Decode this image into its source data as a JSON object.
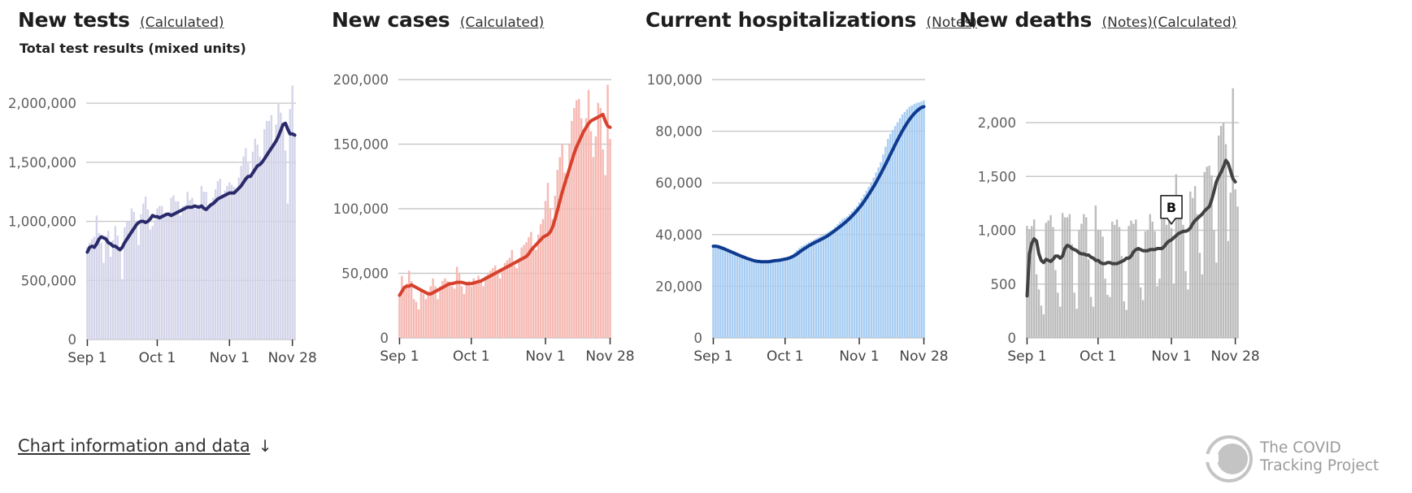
{
  "footer": {
    "link_label": "Chart information and data",
    "arrow": "↓"
  },
  "brand": {
    "line1": "The COVID",
    "line2": "Tracking Project",
    "color": "#9a9a9a"
  },
  "chart_data": [
    {
      "id": "tests",
      "type": "bar",
      "title": "New tests",
      "links": [
        "(Calculated)"
      ],
      "subtitle": "Total test results (mixed units)",
      "bar_color": "#d4d4ea",
      "line_color": "#2a2a6b",
      "ylim": [
        0,
        2200000
      ],
      "yticks": [
        0,
        500000,
        1000000,
        1500000,
        2000000
      ],
      "ytick_labels": [
        "0",
        "500,000",
        "1,000,000",
        "1,500,000",
        "2,000,000"
      ],
      "xtick_labels": [
        "Sep 1",
        "Oct 1",
        "Nov 1",
        "Nov 28"
      ],
      "xtick_index": [
        0,
        30,
        61,
        88
      ],
      "values": [
        780000,
        820000,
        850000,
        870000,
        1050000,
        900000,
        820000,
        650000,
        880000,
        920000,
        700000,
        840000,
        960000,
        880000,
        750000,
        510000,
        950000,
        1000000,
        1000000,
        1110000,
        1080000,
        1000000,
        800000,
        1060000,
        1150000,
        1210000,
        1100000,
        930000,
        960000,
        1010000,
        1110000,
        1130000,
        1130000,
        1040000,
        1060000,
        1080000,
        1200000,
        1220000,
        1170000,
        1170000,
        1050000,
        1130000,
        1140000,
        1250000,
        1180000,
        1200000,
        1110000,
        1120000,
        1140000,
        1300000,
        1250000,
        1250000,
        1120000,
        1140000,
        1200000,
        1270000,
        1340000,
        1360000,
        1230000,
        1260000,
        1300000,
        1330000,
        1310000,
        1290000,
        1250000,
        1370000,
        1470000,
        1550000,
        1620000,
        1490000,
        1400000,
        1590000,
        1700000,
        1650000,
        1550000,
        1500000,
        1780000,
        1850000,
        1850000,
        1900000,
        1650000,
        1820000,
        2000000,
        1920000,
        1780000,
        1600000,
        1150000,
        1950000,
        2150000,
        1750000
      ],
      "avg": [
        740000,
        780000,
        790000,
        780000,
        810000,
        850000,
        870000,
        860000,
        850000,
        820000,
        810000,
        790000,
        790000,
        775000,
        760000,
        780000,
        820000,
        850000,
        880000,
        910000,
        940000,
        970000,
        990000,
        1000000,
        1000000,
        990000,
        1000000,
        1020000,
        1050000,
        1040000,
        1040000,
        1030000,
        1040000,
        1050000,
        1060000,
        1060000,
        1050000,
        1060000,
        1070000,
        1080000,
        1090000,
        1100000,
        1110000,
        1120000,
        1120000,
        1120000,
        1130000,
        1125000,
        1120000,
        1130000,
        1110000,
        1100000,
        1120000,
        1140000,
        1150000,
        1170000,
        1190000,
        1200000,
        1210000,
        1220000,
        1230000,
        1240000,
        1240000,
        1240000,
        1260000,
        1280000,
        1300000,
        1330000,
        1360000,
        1380000,
        1380000,
        1410000,
        1440000,
        1470000,
        1480000,
        1500000,
        1530000,
        1560000,
        1590000,
        1620000,
        1650000,
        1680000,
        1720000,
        1770000,
        1820000,
        1830000,
        1780000,
        1740000,
        1740000,
        1730000
      ]
    },
    {
      "id": "cases",
      "type": "bar",
      "title": "New cases",
      "links": [
        "(Calculated)"
      ],
      "bar_color": "#f6b9b3",
      "line_color": "#d6412c",
      "ylim": [
        0,
        200000
      ],
      "yticks": [
        0,
        50000,
        100000,
        150000,
        200000
      ],
      "ytick_labels": [
        "0",
        "50,000",
        "100,000",
        "150,000",
        "200,000"
      ],
      "xtick_labels": [
        "Sep 1",
        "Oct 1",
        "Nov 1",
        "Nov 28"
      ],
      "xtick_index": [
        0,
        30,
        61,
        88
      ],
      "values": [
        32000,
        48000,
        40000,
        42000,
        52000,
        44000,
        30000,
        28000,
        22000,
        38000,
        34000,
        30000,
        36000,
        40000,
        46000,
        40000,
        30000,
        40000,
        44000,
        46000,
        44000,
        42000,
        40000,
        38000,
        55000,
        50000,
        40000,
        34000,
        42000,
        44000,
        40000,
        46000,
        44000,
        48000,
        44000,
        40000,
        48000,
        50000,
        52000,
        54000,
        56000,
        50000,
        46000,
        54000,
        58000,
        60000,
        62000,
        68000,
        56000,
        54000,
        62000,
        70000,
        72000,
        74000,
        78000,
        82000,
        70000,
        68000,
        80000,
        88000,
        92000,
        106000,
        120000,
        100000,
        92000,
        110000,
        130000,
        140000,
        150000,
        128000,
        122000,
        150000,
        168000,
        178000,
        184000,
        185000,
        170000,
        160000,
        170000,
        192000,
        160000,
        140000,
        156000,
        182000,
        178000,
        146000,
        126000,
        196000,
        154000
      ],
      "avg": [
        33000,
        36000,
        39000,
        40000,
        40000,
        41000,
        40000,
        39000,
        38000,
        37000,
        36000,
        35000,
        34000,
        34000,
        35000,
        36000,
        37000,
        38000,
        39000,
        40000,
        41000,
        42000,
        42000,
        42500,
        43000,
        43000,
        43000,
        42500,
        42000,
        42000,
        42000,
        42500,
        43000,
        43500,
        44000,
        45000,
        46000,
        47000,
        48000,
        49000,
        50000,
        51000,
        52000,
        53000,
        54000,
        55000,
        56000,
        57000,
        58000,
        59000,
        60000,
        61000,
        62000,
        63000,
        65000,
        68000,
        70000,
        72000,
        74000,
        76000,
        78000,
        79000,
        80000,
        82000,
        86000,
        92000,
        99000,
        106000,
        113000,
        119000,
        125000,
        131000,
        137000,
        143000,
        148000,
        152000,
        156000,
        160000,
        163000,
        166000,
        168000,
        169000,
        170000,
        171000,
        172000,
        173000,
        168000,
        164000,
        163000
      ]
    },
    {
      "id": "hospitalizations",
      "type": "bar",
      "title": "Current hospitalizations",
      "links": [
        "(Notes)"
      ],
      "bar_color": "#a8cdf2",
      "line_color": "#0e3b8f",
      "ylim": [
        0,
        100000
      ],
      "yticks": [
        0,
        20000,
        40000,
        60000,
        80000,
        100000
      ],
      "ytick_labels": [
        "0",
        "20,000",
        "40,000",
        "60,000",
        "80,000",
        "100,000"
      ],
      "xtick_labels": [
        "Sep 1",
        "Oct 1",
        "Nov 1",
        "Nov 28"
      ],
      "xtick_index": [
        0,
        30,
        61,
        88
      ],
      "values": [
        36000,
        35500,
        35000,
        34600,
        34200,
        33800,
        33500,
        33000,
        32600,
        32200,
        31800,
        31500,
        31200,
        30800,
        30500,
        30300,
        30000,
        29800,
        29500,
        29600,
        29500,
        29400,
        29300,
        29500,
        29600,
        29800,
        30000,
        30200,
        30400,
        30600,
        30800,
        31000,
        31500,
        32000,
        33000,
        34000,
        34800,
        35500,
        36000,
        36500,
        37000,
        37500,
        38000,
        38500,
        39000,
        39500,
        40000,
        40500,
        41000,
        41500,
        42000,
        43000,
        44000,
        45000,
        46000,
        46500,
        47000,
        48000,
        49000,
        50000,
        51000,
        52500,
        54000,
        55500,
        57000,
        58500,
        60000,
        62000,
        64000,
        66000,
        68000,
        71000,
        74000,
        77000,
        79000,
        80500,
        82000,
        83500,
        85000,
        86500,
        87500,
        88500,
        89500,
        90000,
        90500,
        91000,
        91200,
        91500,
        92000
      ],
      "avg": [
        35500,
        35500,
        35300,
        35000,
        34700,
        34300,
        33900,
        33500,
        33100,
        32700,
        32300,
        31900,
        31500,
        31200,
        30800,
        30500,
        30200,
        29900,
        29700,
        29600,
        29500,
        29500,
        29500,
        29500,
        29600,
        29800,
        29900,
        30000,
        30100,
        30300,
        30500,
        30700,
        31000,
        31400,
        31900,
        32500,
        33200,
        33900,
        34500,
        35100,
        35700,
        36200,
        36700,
        37200,
        37600,
        38100,
        38600,
        39100,
        39700,
        40300,
        41000,
        41700,
        42400,
        43100,
        43800,
        44600,
        45400,
        46300,
        47200,
        48200,
        49200,
        50300,
        51500,
        52800,
        54200,
        55600,
        57100,
        58600,
        60200,
        61900,
        63600,
        65400,
        67200,
        69100,
        71000,
        72900,
        74800,
        76600,
        78400,
        80100,
        81700,
        83200,
        84600,
        85800,
        86900,
        87800,
        88600,
        89200,
        89500
      ]
    },
    {
      "id": "deaths",
      "type": "bar",
      "title": "New deaths",
      "links": [
        "(Notes)",
        "(Calculated)"
      ],
      "bar_color": "#bcbcbc",
      "line_color": "#424242",
      "ylim": [
        0,
        2400
      ],
      "yticks": [
        0,
        500,
        1000,
        1500,
        2000
      ],
      "ytick_labels": [
        "0",
        "500",
        "1,000",
        "1,500",
        "2,000"
      ],
      "xtick_labels": [
        "Sep 1",
        "Oct 1",
        "Nov 1",
        "Nov 28"
      ],
      "xtick_index": [
        0,
        30,
        61,
        88
      ],
      "annotation": {
        "label": "B",
        "index": 61
      },
      "values": [
        1040,
        1010,
        1040,
        1100,
        590,
        450,
        300,
        220,
        1070,
        1090,
        1140,
        1030,
        630,
        420,
        290,
        1160,
        1120,
        1120,
        1150,
        870,
        420,
        270,
        1000,
        1060,
        1150,
        1120,
        730,
        380,
        290,
        1230,
        1000,
        1000,
        940,
        550,
        400,
        380,
        1080,
        1050,
        1100,
        1030,
        760,
        340,
        260,
        1040,
        1090,
        1060,
        1100,
        810,
        470,
        350,
        990,
        1000,
        1150,
        1080,
        990,
        480,
        550,
        1100,
        1150,
        1050,
        1100,
        1020,
        500,
        1520,
        1200,
        1150,
        1050,
        620,
        450,
        1360,
        1300,
        1410,
        1150,
        790,
        590,
        1540,
        1590,
        1600,
        1510,
        1000,
        700,
        1880,
        1970,
        2000,
        1800,
        900,
        1350,
        2320,
        1380,
        1220
      ],
      "avg": [
        390,
        780,
        880,
        920,
        900,
        780,
        720,
        700,
        730,
        720,
        710,
        730,
        760,
        760,
        740,
        760,
        830,
        860,
        850,
        830,
        820,
        810,
        790,
        780,
        780,
        770,
        770,
        750,
        740,
        720,
        720,
        700,
        690,
        690,
        700,
        700,
        690,
        690,
        690,
        700,
        710,
        720,
        740,
        740,
        760,
        800,
        820,
        830,
        820,
        810,
        810,
        810,
        820,
        820,
        820,
        830,
        830,
        830,
        850,
        880,
        900,
        910,
        930,
        950,
        970,
        980,
        990,
        990,
        1000,
        1020,
        1060,
        1090,
        1110,
        1130,
        1150,
        1180,
        1200,
        1220,
        1280,
        1360,
        1450,
        1500,
        1540,
        1590,
        1650,
        1620,
        1550,
        1480,
        1450
      ]
    }
  ]
}
